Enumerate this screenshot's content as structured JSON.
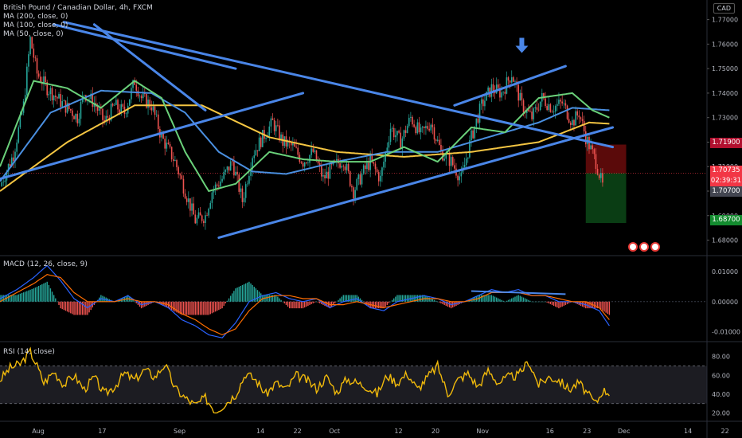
{
  "header": {
    "symbol_title": "British Pound / Canadian Dollar, 4h, FXCM",
    "ma_labels": [
      "MA (200, close, 0)",
      "MA (100, close, 0)",
      "MA (50, close, 0)"
    ],
    "currency": "CAD"
  },
  "macd_label": "MACD (12, 26, close, 9)",
  "rsi_label": "RSI (14, close)",
  "price_tags": {
    "target_top": "1.71900",
    "last_price": "1.70735",
    "countdown": "02:39:31",
    "bid": "1.70700",
    "target_bottom": "1.68700"
  },
  "colors": {
    "background": "#000000",
    "trendline": "#4a86e8",
    "ma200": "#f4c542",
    "ma100": "#4a8fe0",
    "ma50": "#6ad17a",
    "macd_line": "#2962ff",
    "macd_signal": "#ff6d00",
    "rsi": "#f0b90b",
    "risk_zone": "#5a0a0a",
    "reward_zone": "#0a3d14"
  },
  "chart_data": {
    "type": "line",
    "price_axis": {
      "ticks": [
        1.68,
        1.69,
        1.7,
        1.71,
        1.72,
        1.73,
        1.74,
        1.75,
        1.76,
        1.77
      ],
      "tick_labels": [
        "1.68000",
        "1.69000",
        "1.70000",
        "1.71000",
        "1.72000",
        "1.73000",
        "1.74000",
        "1.75000",
        "1.76000",
        "1.77000"
      ],
      "ylim": [
        1.674,
        1.778
      ]
    },
    "macd_axis": {
      "tick_labels": [
        "0.01000",
        "0.00000",
        "-0.01000"
      ],
      "ticks": [
        0.01,
        0.0,
        -0.01
      ],
      "ylim": [
        -0.013,
        0.015
      ]
    },
    "rsi_axis": {
      "tick_labels": [
        "80.00",
        "60.00",
        "40.00",
        "20.00"
      ],
      "ticks": [
        80,
        60,
        40,
        20
      ],
      "ylim": [
        12,
        95
      ],
      "bands": [
        30,
        70
      ]
    },
    "time_axis": {
      "labels": [
        "Aug",
        "17",
        "Sep",
        "14",
        "22",
        "Oct",
        "12",
        "20",
        "Nov",
        "16",
        "23",
        "Dec",
        "14",
        "22"
      ],
      "positions": [
        0,
        19,
        42,
        66,
        77,
        88,
        107,
        118,
        132,
        152,
        163,
        174,
        193,
        204
      ]
    },
    "price_series": {
      "x": [
        0,
        4,
        7,
        9,
        11,
        14,
        17,
        19,
        21,
        23,
        25,
        28,
        31,
        34,
        37,
        40,
        42,
        45,
        48,
        52,
        55,
        58,
        61,
        63,
        66,
        69,
        72,
        75,
        78,
        81,
        84,
        87,
        90,
        93,
        96,
        99,
        102,
        105,
        108,
        110,
        113,
        116,
        119,
        122,
        125,
        128,
        131,
        134,
        137,
        140,
        143,
        146,
        149,
        152,
        155,
        158,
        161,
        164,
        167,
        170,
        172,
        174,
        177,
        179
      ],
      "close": [
        1.702,
        1.715,
        1.735,
        1.762,
        1.748,
        1.742,
        1.738,
        1.735,
        1.733,
        1.73,
        1.74,
        1.736,
        1.728,
        1.735,
        1.732,
        1.745,
        1.738,
        1.735,
        1.722,
        1.712,
        1.7,
        1.688,
        1.69,
        1.7,
        1.705,
        1.712,
        1.696,
        1.715,
        1.722,
        1.728,
        1.72,
        1.718,
        1.712,
        1.716,
        1.705,
        1.71,
        1.713,
        1.7,
        1.708,
        1.712,
        1.705,
        1.726,
        1.72,
        1.73,
        1.723,
        1.728,
        1.716,
        1.712,
        1.705,
        1.722,
        1.735,
        1.742,
        1.74,
        1.748,
        1.735,
        1.73,
        1.738,
        1.734,
        1.736,
        1.728,
        1.732,
        1.722,
        1.712,
        1.702
      ]
    },
    "moving_averages": [
      {
        "name": "MA (200, close, 0)",
        "x": [
          0,
          20,
          40,
          60,
          80,
          100,
          120,
          140,
          160,
          175,
          181
        ],
        "values": [
          1.7,
          1.72,
          1.735,
          1.735,
          1.722,
          1.716,
          1.714,
          1.716,
          1.72,
          1.728,
          1.7275
        ]
      },
      {
        "name": "MA (100, close, 0)",
        "x": [
          0,
          15,
          30,
          45,
          55,
          65,
          75,
          85,
          100,
          115,
          130,
          145,
          160,
          170,
          181
        ],
        "values": [
          1.704,
          1.732,
          1.741,
          1.74,
          1.732,
          1.716,
          1.708,
          1.707,
          1.712,
          1.716,
          1.716,
          1.722,
          1.728,
          1.734,
          1.733
        ]
      },
      {
        "name": "MA (50, close, 0)",
        "x": [
          0,
          10,
          20,
          30,
          40,
          48,
          55,
          62,
          70,
          80,
          90,
          100,
          110,
          120,
          130,
          140,
          150,
          160,
          170,
          176,
          181
        ],
        "values": [
          1.71,
          1.745,
          1.742,
          1.734,
          1.745,
          1.738,
          1.716,
          1.7,
          1.703,
          1.716,
          1.713,
          1.712,
          1.712,
          1.718,
          1.712,
          1.726,
          1.724,
          1.738,
          1.74,
          1.733,
          1.73
        ]
      }
    ],
    "trendlines": [
      {
        "from": [
          0,
          1.705
        ],
        "to": [
          90,
          1.74
        ]
      },
      {
        "from": [
          16,
          1.768
        ],
        "to": [
          70,
          1.75
        ]
      },
      {
        "from": [
          28,
          1.768
        ],
        "to": [
          61,
          1.733
        ]
      },
      {
        "from": [
          65,
          1.681
        ],
        "to": [
          182,
          1.726
        ]
      },
      {
        "from": [
          19,
          1.769
        ],
        "to": [
          182,
          1.718
        ]
      },
      {
        "from": [
          135,
          1.735
        ],
        "to": [
          168,
          1.751
        ]
      }
    ],
    "arrow_marker": {
      "x": 155,
      "y": 1.758
    },
    "position_tool": {
      "x_from": 174,
      "x_to": 186,
      "entry": 1.7073,
      "stop": 1.719,
      "target": 1.687
    },
    "macd": {
      "x": [
        0,
        5,
        10,
        14,
        18,
        22,
        26,
        30,
        34,
        38,
        42,
        46,
        50,
        54,
        58,
        62,
        66,
        70,
        74,
        78,
        82,
        86,
        90,
        94,
        98,
        102,
        106,
        110,
        114,
        118,
        122,
        126,
        130,
        134,
        138,
        142,
        146,
        150,
        154,
        158,
        162,
        166,
        170,
        174,
        178,
        181
      ],
      "macd": [
        0.001,
        0.004,
        0.008,
        0.012,
        0.007,
        0.001,
        -0.002,
        0.001,
        0.0,
        0.002,
        -0.001,
        0.0,
        -0.002,
        -0.006,
        -0.008,
        -0.011,
        -0.012,
        -0.007,
        0.0,
        0.002,
        0.003,
        0.001,
        0.0,
        0.001,
        -0.002,
        0.0,
        0.001,
        -0.002,
        -0.003,
        0.0,
        0.001,
        0.002,
        0.001,
        -0.001,
        0.0,
        0.002,
        0.004,
        0.003,
        0.004,
        0.002,
        0.002,
        0.0,
        0.0,
        -0.001,
        -0.003,
        -0.008
      ],
      "signal": [
        0.0,
        0.003,
        0.006,
        0.009,
        0.008,
        0.003,
        0.0,
        0.0,
        0.0,
        0.001,
        0.0,
        0.0,
        -0.001,
        -0.004,
        -0.006,
        -0.009,
        -0.011,
        -0.009,
        -0.003,
        0.001,
        0.002,
        0.002,
        0.001,
        0.001,
        -0.001,
        -0.001,
        0.0,
        -0.001,
        -0.002,
        -0.001,
        0.0,
        0.001,
        0.001,
        0.0,
        0.0,
        0.001,
        0.003,
        0.003,
        0.003,
        0.002,
        0.002,
        0.001,
        0.0,
        0.0,
        -0.002,
        -0.006
      ]
    },
    "macd_divergence_line": {
      "from": [
        140,
        0.0035
      ],
      "to": [
        168,
        0.0025
      ]
    },
    "rsi": {
      "x": [
        0,
        3,
        6,
        9,
        11,
        13,
        16,
        19,
        22,
        25,
        28,
        31,
        34,
        37,
        40,
        43,
        46,
        49,
        52,
        55,
        58,
        61,
        64,
        67,
        70,
        73,
        76,
        79,
        82,
        85,
        88,
        91,
        94,
        97,
        100,
        103,
        106,
        109,
        112,
        115,
        118,
        121,
        124,
        127,
        130,
        133,
        136,
        139,
        142,
        145,
        148,
        151,
        154,
        157,
        160,
        163,
        166,
        169,
        172,
        175,
        177,
        179,
        181
      ],
      "values": [
        55,
        68,
        72,
        85,
        70,
        52,
        64,
        50,
        60,
        45,
        58,
        40,
        48,
        62,
        55,
        66,
        58,
        72,
        46,
        36,
        28,
        36,
        22,
        30,
        40,
        62,
        55,
        40,
        52,
        45,
        60,
        55,
        46,
        58,
        42,
        56,
        52,
        48,
        40,
        60,
        52,
        62,
        45,
        58,
        70,
        40,
        55,
        62,
        48,
        65,
        52,
        58,
        60,
        75,
        50,
        58,
        55,
        45,
        52,
        38,
        30,
        44,
        42
      ]
    }
  }
}
